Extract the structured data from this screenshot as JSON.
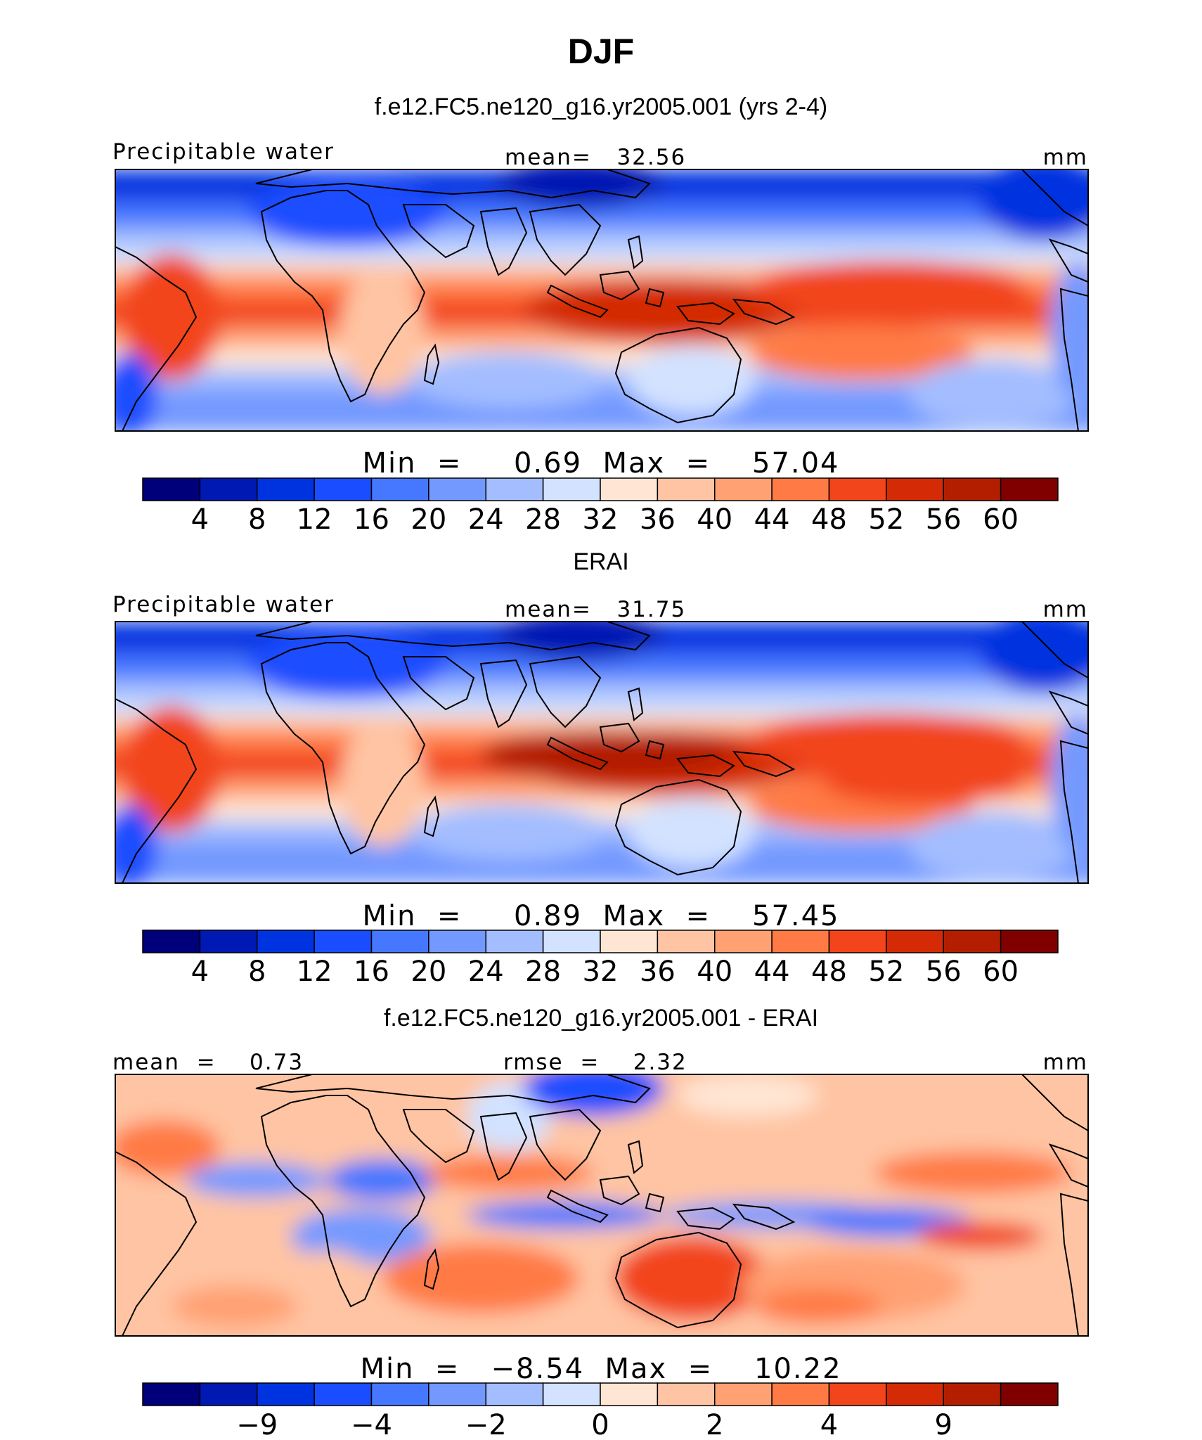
{
  "figure": {
    "title": "DJF"
  },
  "colors": {
    "abs_scale": [
      "#00007a",
      "#0019b3",
      "#0033e0",
      "#1a4dff",
      "#4577ff",
      "#7399ff",
      "#a3bdff",
      "#d2e2ff",
      "#ffe6d4",
      "#ffc4a3",
      "#ffa173",
      "#ff7a45",
      "#f2451c",
      "#d42a05",
      "#b31e00",
      "#800000"
    ],
    "diff_scale": [
      "#00007a",
      "#0019b3",
      "#0033e0",
      "#1a4dff",
      "#4577ff",
      "#7399ff",
      "#a3bdff",
      "#d2e2ff",
      "#ffe6d4",
      "#ffc4a3",
      "#ffa173",
      "#ff7a45",
      "#f2451c",
      "#d42a05",
      "#b31e00",
      "#800000"
    ],
    "land_outline": "#000000"
  },
  "chart_data": [
    {
      "type": "heatmap",
      "title": "f.e12.FC5.ne120_g16.yr2005.001 (yrs 2-4)",
      "left_label": "Precipitable water",
      "center_label": "mean=   32.56",
      "units": "mm",
      "stats": "Min  =     0.69  Max  =    57.04",
      "mean": 32.56,
      "min": 0.69,
      "max": 57.04,
      "colorbar_ticks": [
        "4",
        "8",
        "12",
        "16",
        "20",
        "24",
        "28",
        "32",
        "36",
        "40",
        "44",
        "48",
        "52",
        "56",
        "60"
      ],
      "levels": [
        4,
        8,
        12,
        16,
        20,
        24,
        28,
        32,
        36,
        40,
        44,
        48,
        52,
        56,
        60
      ]
    },
    {
      "type": "heatmap",
      "title": "ERAI",
      "left_label": "Precipitable water",
      "center_label": "mean=   31.75",
      "units": "mm",
      "stats": "Min  =     0.89  Max  =    57.45",
      "mean": 31.75,
      "min": 0.89,
      "max": 57.45,
      "colorbar_ticks": [
        "4",
        "8",
        "12",
        "16",
        "20",
        "24",
        "28",
        "32",
        "36",
        "40",
        "44",
        "48",
        "52",
        "56",
        "60"
      ],
      "levels": [
        4,
        8,
        12,
        16,
        20,
        24,
        28,
        32,
        36,
        40,
        44,
        48,
        52,
        56,
        60
      ]
    },
    {
      "type": "heatmap",
      "title": "f.e12.FC5.ne120_g16.yr2005.001 - ERAI",
      "left_label": "mean  =    0.73",
      "center_label": "rmse  =    2.32",
      "units": "mm",
      "stats": "Min  =   −8.54  Max  =    10.22",
      "mean": 0.73,
      "rmse": 2.32,
      "min": -8.54,
      "max": 10.22,
      "colorbar_ticks": [
        "−9",
        "−4",
        "−2",
        "0",
        "2",
        "4",
        "9"
      ],
      "levels": [
        -9,
        -4,
        -2,
        0,
        2,
        4,
        9
      ]
    }
  ]
}
